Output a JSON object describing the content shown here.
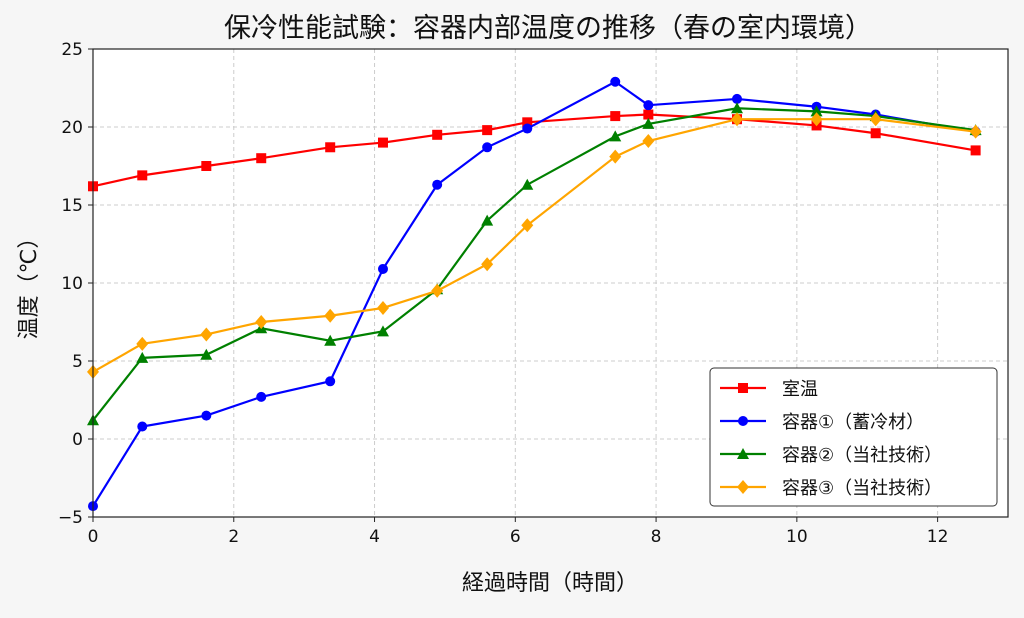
{
  "chart_data": {
    "type": "line",
    "title": "保冷性能試験：容器内部温度の推移（春の室内環境）",
    "xlabel": "経過時間（時間）",
    "ylabel": "温度（℃）",
    "xlim": [
      0,
      13
    ],
    "ylim": [
      -5,
      25
    ],
    "xticks": [
      0,
      2,
      4,
      6,
      8,
      10,
      12
    ],
    "yticks": [
      -5,
      0,
      5,
      10,
      15,
      20,
      25
    ],
    "grid": true,
    "legend_position": "bottom-right",
    "x": [
      0,
      0.7,
      1.61,
      2.39,
      3.37,
      4.12,
      4.89,
      5.6,
      6.17,
      7.42,
      7.89,
      9.15,
      10.28,
      11.12,
      12.54
    ],
    "series": [
      {
        "name": "室温",
        "color": "#ff0000",
        "marker": "square",
        "values": [
          16.2,
          16.9,
          17.5,
          18.0,
          18.7,
          19.0,
          19.5,
          19.8,
          20.3,
          20.7,
          20.8,
          20.5,
          20.1,
          19.6,
          18.5
        ]
      },
      {
        "name": "容器①（蓄冷材）",
        "color": "#0000ff",
        "marker": "circle",
        "values": [
          -4.3,
          0.8,
          1.5,
          2.7,
          3.7,
          10.9,
          16.3,
          18.7,
          19.9,
          22.9,
          21.4,
          21.8,
          21.3,
          20.8,
          19.7
        ]
      },
      {
        "name": "容器②（当社技術）",
        "color": "#008000",
        "marker": "triangle",
        "values": [
          1.2,
          5.2,
          5.4,
          7.1,
          6.3,
          6.9,
          9.6,
          14.0,
          16.3,
          19.4,
          20.2,
          21.2,
          21.0,
          20.7,
          19.8
        ]
      },
      {
        "name": "容器③（当社技術）",
        "color": "#ffa500",
        "marker": "diamond",
        "values": [
          4.3,
          6.1,
          6.7,
          7.5,
          7.9,
          8.4,
          9.5,
          11.2,
          13.7,
          18.1,
          19.1,
          20.5,
          20.5,
          20.5,
          19.7
        ]
      }
    ]
  }
}
